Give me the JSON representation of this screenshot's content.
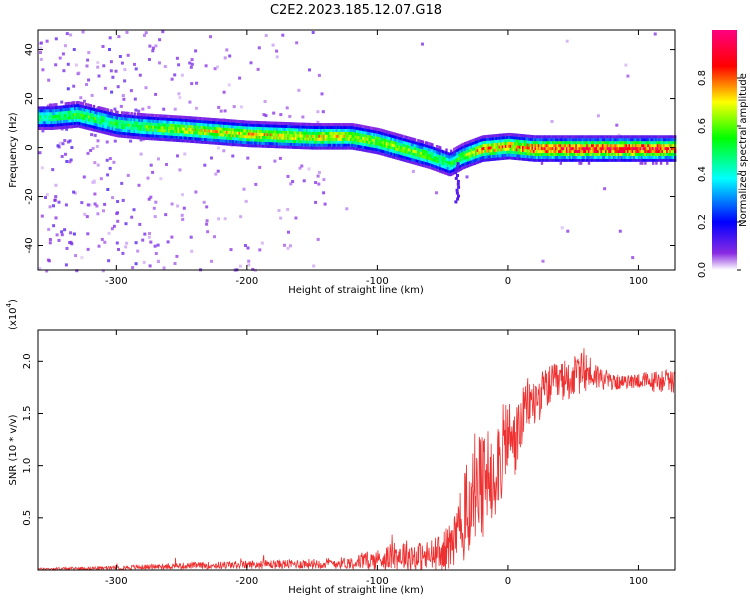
{
  "title": "C2E2.2023.185.12.07.G18",
  "colorbar": {
    "label": "Normalized spectral amplitude",
    "range": [
      0,
      1
    ],
    "ticks": [
      "0.0",
      "0.2",
      "0.4",
      "0.6",
      "0.8"
    ],
    "tick_values": [
      0.0,
      0.2,
      0.4,
      0.6,
      0.8
    ],
    "colormap": "rainbow (white-violet-blue-cyan-green-yellow-red-magenta)"
  },
  "chart_data": [
    {
      "type": "heatmap",
      "title": "",
      "xlabel": "Height of straight line (km)",
      "ylabel": "Frequency (Hz)",
      "xlim": [
        -360,
        128
      ],
      "ylim": [
        -50,
        48
      ],
      "xticks": [
        -300,
        -200,
        -100,
        0,
        100
      ],
      "xtick_labels": [
        "-300",
        "-200",
        "-100",
        "0",
        "100"
      ],
      "yticks": [
        -40,
        -20,
        0,
        20,
        40
      ],
      "ytick_labels": [
        "-40",
        "-20",
        "0",
        "20",
        "40"
      ],
      "ridge": {
        "x": [
          -350,
          -330,
          -300,
          -280,
          -250,
          -200,
          -150,
          -120,
          -100,
          -80,
          -60,
          -45,
          -35,
          -20,
          0,
          20,
          50,
          80,
          110,
          128
        ],
        "y": [
          13,
          14,
          10,
          9,
          8,
          6,
          5,
          5,
          3,
          0,
          -3,
          -6,
          -3,
          0,
          1,
          0,
          0,
          0,
          0,
          0
        ],
        "amplitude": [
          0.5,
          0.6,
          0.55,
          0.6,
          0.7,
          0.75,
          0.75,
          0.7,
          0.65,
          0.65,
          0.6,
          0.55,
          0.6,
          0.8,
          0.8,
          0.9,
          0.95,
          0.95,
          0.95,
          0.9
        ]
      },
      "grid": false
    },
    {
      "type": "line",
      "title": "",
      "xlabel": "Height of straight line (km)",
      "ylabel": "SNR (10 * v/v)",
      "scale_label": "(x10",
      "scale_exp": "4",
      "scale_close": ")",
      "xlim": [
        -360,
        128
      ],
      "ylim": [
        0,
        2.3
      ],
      "xticks": [
        -300,
        -200,
        -100,
        0,
        100
      ],
      "xtick_labels": [
        "-300",
        "-200",
        "-100",
        "0",
        "100"
      ],
      "yticks": [
        0.5,
        1.0,
        1.5,
        2.0
      ],
      "ytick_labels": [
        "0.5",
        "1.0",
        "1.5",
        "2.0"
      ],
      "series": [
        {
          "color": "#ee3030",
          "x": [
            -360,
            -300,
            -250,
            -200,
            -150,
            -120,
            -100,
            -80,
            -65,
            -50,
            -40,
            -30,
            -25,
            -20,
            -15,
            -10,
            -5,
            0,
            5,
            10,
            15,
            20,
            30,
            40,
            50,
            60,
            70,
            80,
            90,
            100,
            110,
            120,
            128
          ],
          "y": [
            0.01,
            0.02,
            0.04,
            0.05,
            0.06,
            0.07,
            0.1,
            0.15,
            0.12,
            0.15,
            0.3,
            0.6,
            0.8,
            0.7,
            0.9,
            1.0,
            1.1,
            1.3,
            1.2,
            1.4,
            1.6,
            1.6,
            1.75,
            1.8,
            1.85,
            1.9,
            1.85,
            1.8,
            1.8,
            1.82,
            1.8,
            1.82,
            1.8
          ],
          "noise": [
            0.01,
            0.02,
            0.03,
            0.04,
            0.05,
            0.06,
            0.1,
            0.15,
            0.15,
            0.2,
            0.3,
            0.5,
            0.6,
            0.6,
            0.5,
            0.5,
            0.45,
            0.4,
            0.35,
            0.3,
            0.25,
            0.25,
            0.2,
            0.2,
            0.2,
            0.2,
            0.12,
            0.08,
            0.06,
            0.08,
            0.1,
            0.12,
            0.1
          ]
        }
      ],
      "grid": false
    }
  ]
}
